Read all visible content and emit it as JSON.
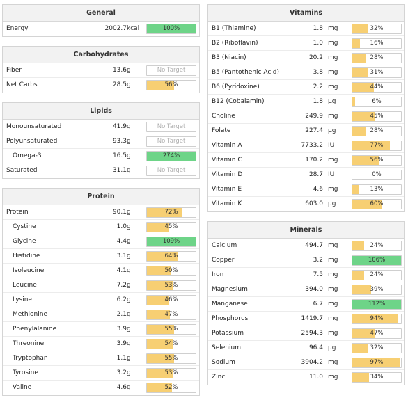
{
  "general": {
    "title": "General",
    "rows": [
      {
        "name": "Energy",
        "amount": "2002.7",
        "unit": "kcal",
        "pct": 100,
        "label": "100%"
      }
    ]
  },
  "carbohydrates": {
    "title": "Carbohydrates",
    "rows": [
      {
        "name": "Fiber",
        "amount": "13.6",
        "unit": "g",
        "pct": 0,
        "label": "No Target",
        "notarget": true
      },
      {
        "name": "Net Carbs",
        "amount": "28.5",
        "unit": "g",
        "pct": 56,
        "label": "56%"
      }
    ]
  },
  "lipids": {
    "title": "Lipids",
    "rows": [
      {
        "name": "Monounsaturated",
        "amount": "41.9",
        "unit": "g",
        "pct": 0,
        "label": "No Target",
        "notarget": true
      },
      {
        "name": "Polyunsaturated",
        "amount": "93.3",
        "unit": "g",
        "pct": 0,
        "label": "No Target",
        "notarget": true
      },
      {
        "name": "Omega-3",
        "amount": "16.5",
        "unit": "g",
        "pct": 274,
        "label": "274%",
        "indent": true
      },
      {
        "name": "Saturated",
        "amount": "31.1",
        "unit": "g",
        "pct": 0,
        "label": "No Target",
        "notarget": true
      }
    ]
  },
  "protein": {
    "title": "Protein",
    "rows": [
      {
        "name": "Protein",
        "amount": "90.1",
        "unit": "g",
        "pct": 72,
        "label": "72%"
      },
      {
        "name": "Cystine",
        "amount": "1.0",
        "unit": "g",
        "pct": 45,
        "label": "45%",
        "indent": true
      },
      {
        "name": "Glycine",
        "amount": "4.4",
        "unit": "g",
        "pct": 109,
        "label": "109%",
        "indent": true
      },
      {
        "name": "Histidine",
        "amount": "3.1",
        "unit": "g",
        "pct": 64,
        "label": "64%",
        "indent": true
      },
      {
        "name": "Isoleucine",
        "amount": "4.1",
        "unit": "g",
        "pct": 50,
        "label": "50%",
        "indent": true
      },
      {
        "name": "Leucine",
        "amount": "7.2",
        "unit": "g",
        "pct": 53,
        "label": "53%",
        "indent": true
      },
      {
        "name": "Lysine",
        "amount": "6.2",
        "unit": "g",
        "pct": 46,
        "label": "46%",
        "indent": true
      },
      {
        "name": "Methionine",
        "amount": "2.1",
        "unit": "g",
        "pct": 47,
        "label": "47%",
        "indent": true
      },
      {
        "name": "Phenylalanine",
        "amount": "3.9",
        "unit": "g",
        "pct": 55,
        "label": "55%",
        "indent": true
      },
      {
        "name": "Threonine",
        "amount": "3.9",
        "unit": "g",
        "pct": 54,
        "label": "54%",
        "indent": true
      },
      {
        "name": "Tryptophan",
        "amount": "1.1",
        "unit": "g",
        "pct": 55,
        "label": "55%",
        "indent": true
      },
      {
        "name": "Tyrosine",
        "amount": "3.2",
        "unit": "g",
        "pct": 53,
        "label": "53%",
        "indent": true
      },
      {
        "name": "Valine",
        "amount": "4.6",
        "unit": "g",
        "pct": 52,
        "label": "52%",
        "indent": true
      }
    ]
  },
  "vitamins": {
    "title": "Vitamins",
    "rows": [
      {
        "name": "B1 (Thiamine)",
        "amount": "1.8",
        "unit": "mg",
        "pct": 32,
        "label": "32%"
      },
      {
        "name": "B2 (Riboflavin)",
        "amount": "1.0",
        "unit": "mg",
        "pct": 16,
        "label": "16%"
      },
      {
        "name": "B3 (Niacin)",
        "amount": "20.2",
        "unit": "mg",
        "pct": 28,
        "label": "28%"
      },
      {
        "name": "B5 (Pantothenic Acid)",
        "amount": "3.8",
        "unit": "mg",
        "pct": 31,
        "label": "31%"
      },
      {
        "name": "B6 (Pyridoxine)",
        "amount": "2.2",
        "unit": "mg",
        "pct": 44,
        "label": "44%"
      },
      {
        "name": "B12 (Cobalamin)",
        "amount": "1.8",
        "unit": "µg",
        "pct": 6,
        "label": "6%"
      },
      {
        "name": "Choline",
        "amount": "249.9",
        "unit": "mg",
        "pct": 45,
        "label": "45%"
      },
      {
        "name": "Folate",
        "amount": "227.4",
        "unit": "µg",
        "pct": 28,
        "label": "28%"
      },
      {
        "name": "Vitamin A",
        "amount": "7733.2",
        "unit": "IU",
        "pct": 77,
        "label": "77%"
      },
      {
        "name": "Vitamin C",
        "amount": "170.2",
        "unit": "mg",
        "pct": 56,
        "label": "56%"
      },
      {
        "name": "Vitamin D",
        "amount": "28.7",
        "unit": "IU",
        "pct": 0,
        "label": "0%"
      },
      {
        "name": "Vitamin E",
        "amount": "4.6",
        "unit": "mg",
        "pct": 13,
        "label": "13%"
      },
      {
        "name": "Vitamin K",
        "amount": "603.0",
        "unit": "µg",
        "pct": 60,
        "label": "60%"
      }
    ]
  },
  "minerals": {
    "title": "Minerals",
    "rows": [
      {
        "name": "Calcium",
        "amount": "494.7",
        "unit": "mg",
        "pct": 24,
        "label": "24%"
      },
      {
        "name": "Copper",
        "amount": "3.2",
        "unit": "mg",
        "pct": 106,
        "label": "106%"
      },
      {
        "name": "Iron",
        "amount": "7.5",
        "unit": "mg",
        "pct": 24,
        "label": "24%"
      },
      {
        "name": "Magnesium",
        "amount": "394.0",
        "unit": "mg",
        "pct": 39,
        "label": "39%"
      },
      {
        "name": "Manganese",
        "amount": "6.7",
        "unit": "mg",
        "pct": 112,
        "label": "112%"
      },
      {
        "name": "Phosphorus",
        "amount": "1419.7",
        "unit": "mg",
        "pct": 94,
        "label": "94%"
      },
      {
        "name": "Potassium",
        "amount": "2594.3",
        "unit": "mg",
        "pct": 47,
        "label": "47%"
      },
      {
        "name": "Selenium",
        "amount": "96.4",
        "unit": "µg",
        "pct": 32,
        "label": "32%"
      },
      {
        "name": "Sodium",
        "amount": "3904.2",
        "unit": "mg",
        "pct": 97,
        "label": "97%"
      },
      {
        "name": "Zinc",
        "amount": "11.0",
        "unit": "mg",
        "pct": 34,
        "label": "34%"
      }
    ]
  },
  "colors": {
    "under_target": "#f7cf73",
    "at_or_over_target": "#6ed488"
  }
}
